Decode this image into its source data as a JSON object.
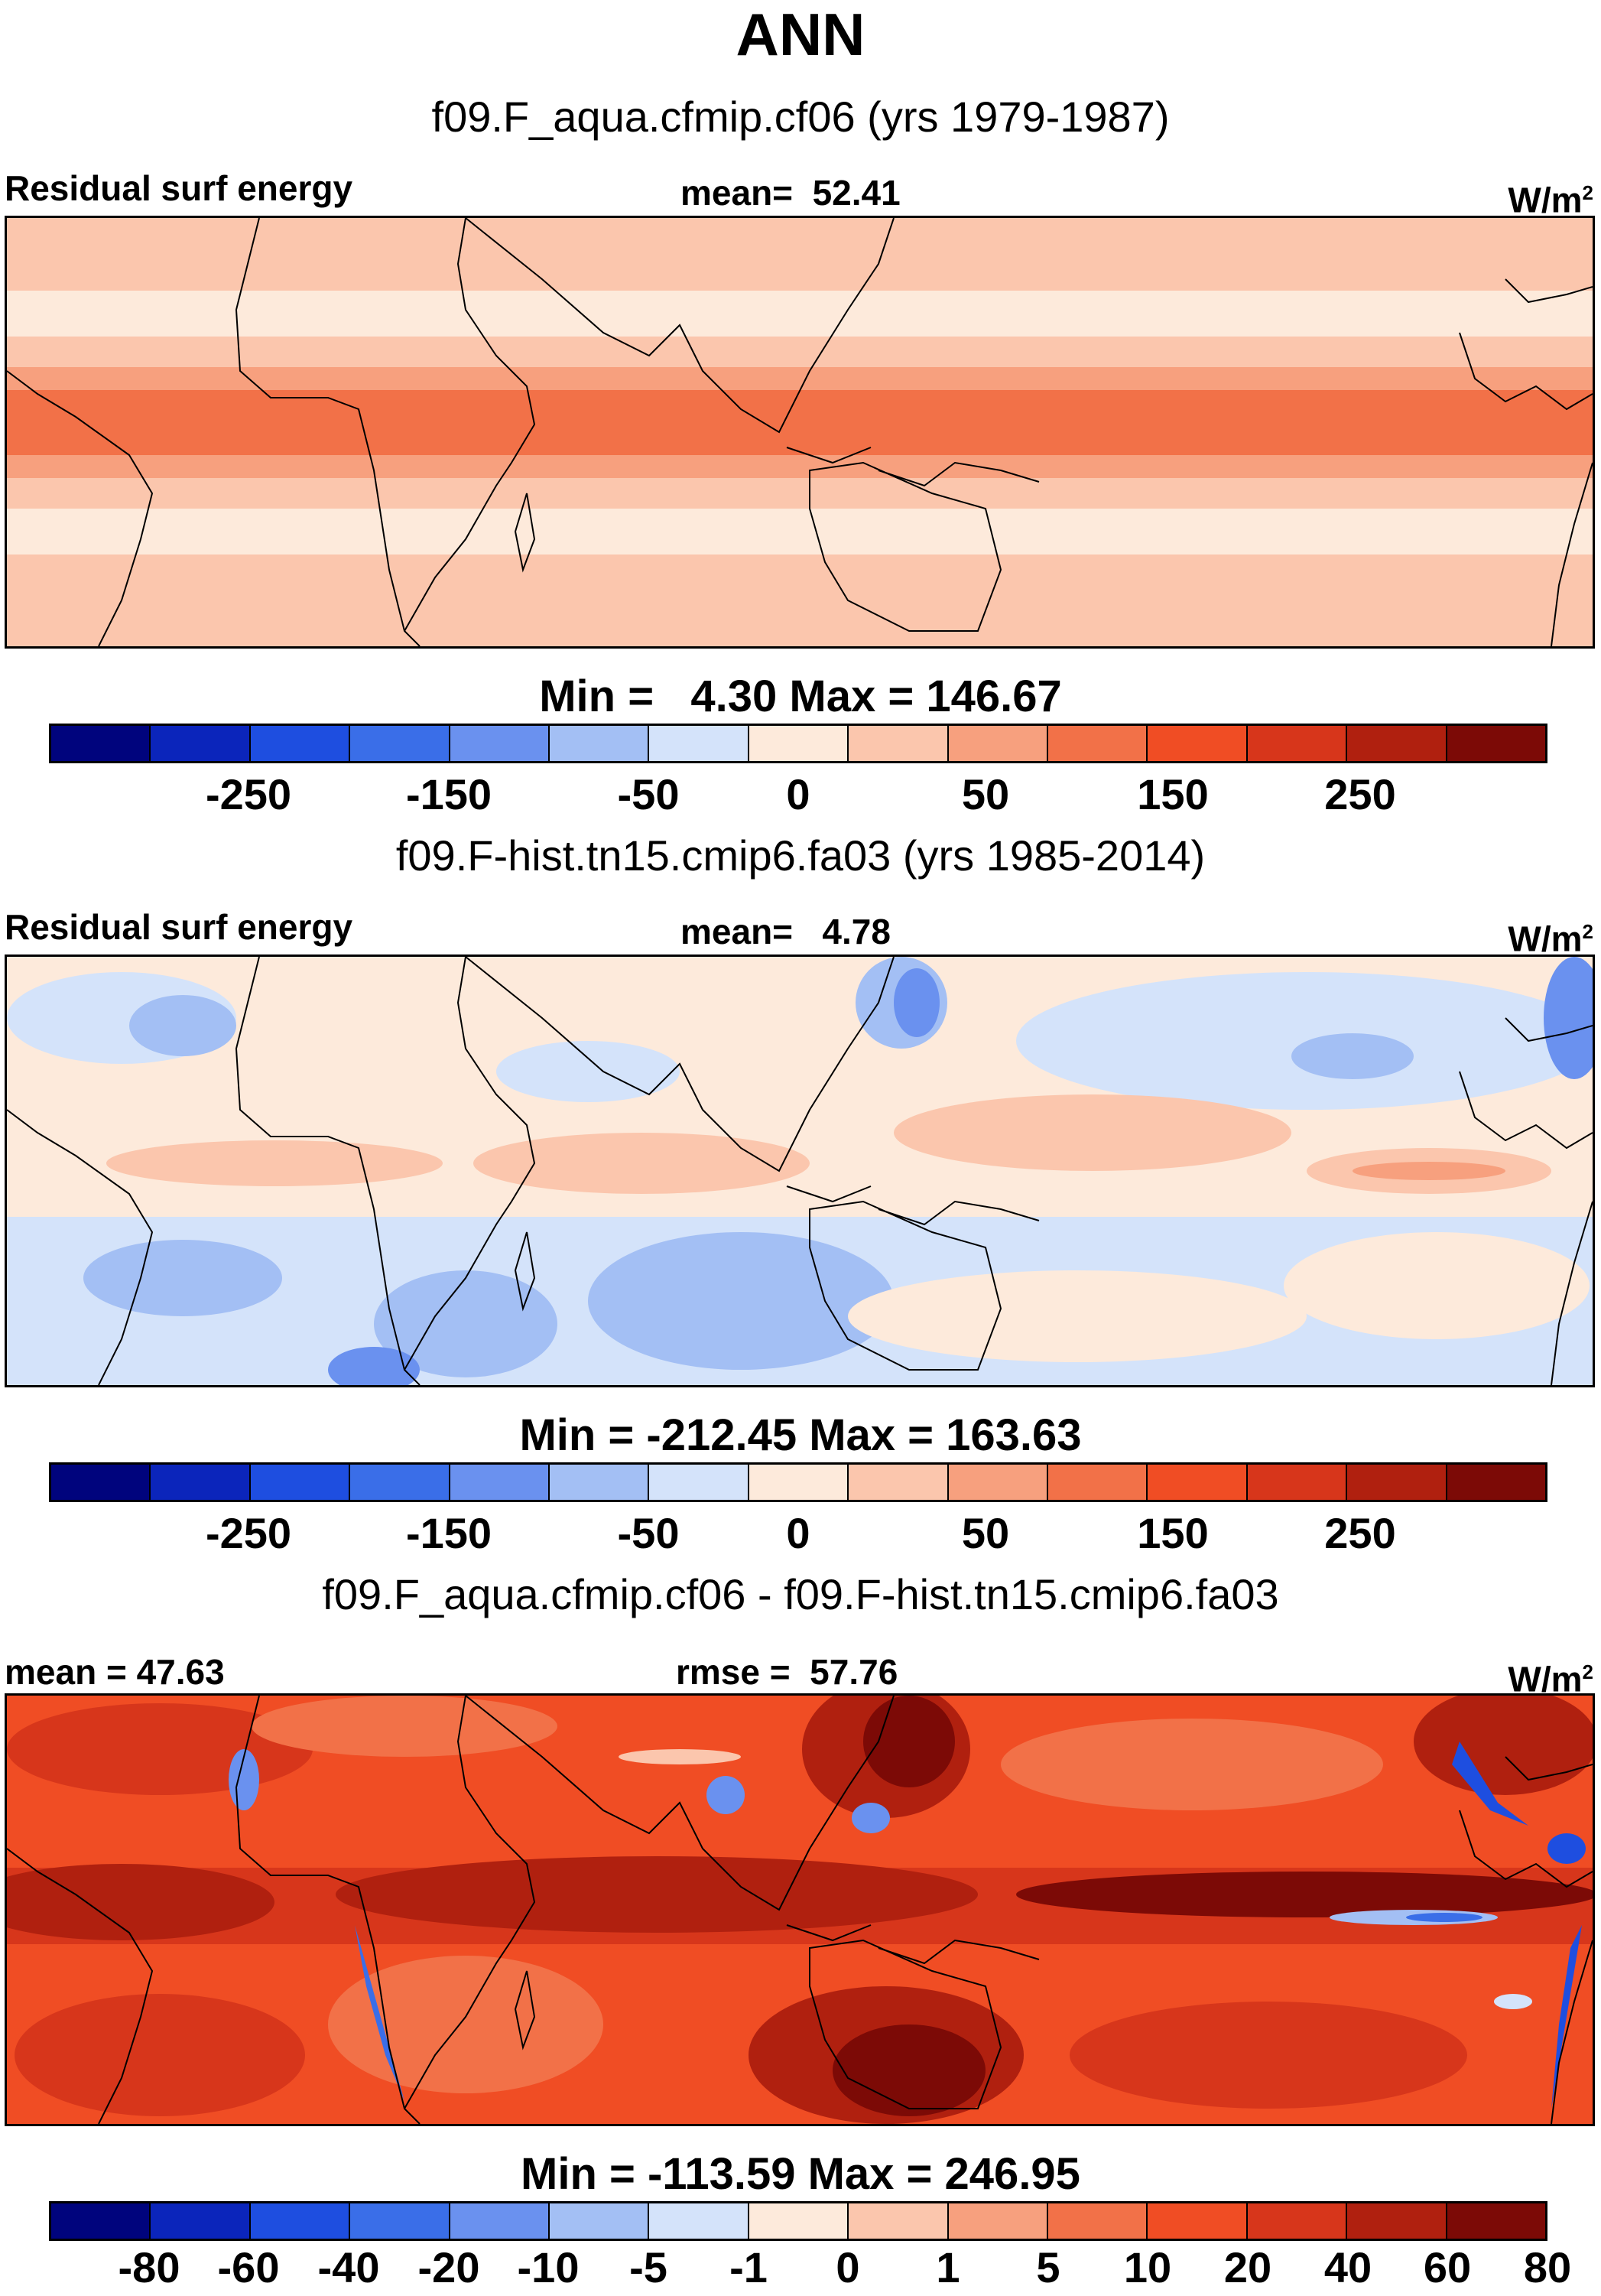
{
  "figure": {
    "title": "ANN"
  },
  "panels": [
    {
      "case_title": "f09.F_aqua.cfmip.cf06 (yrs 1979-1987)",
      "left_label": "Residual surf energy",
      "center_label": "mean=  52.41",
      "units": "W/m",
      "units_exp": "2",
      "minmax": "Min =   4.30 Max = 146.67",
      "colorbar_labels": [
        "-250",
        "-150",
        "-50",
        "0",
        "50",
        "150",
        "250"
      ]
    },
    {
      "case_title": "f09.F-hist.tn15.cmip6.fa03 (yrs 1985-2014)",
      "left_label": "Residual surf energy",
      "center_label": "mean=   4.78",
      "units": "W/m",
      "units_exp": "2",
      "minmax": "Min = -212.45 Max = 163.63",
      "colorbar_labels": [
        "-250",
        "-150",
        "-50",
        "0",
        "50",
        "150",
        "250"
      ]
    },
    {
      "case_title": "f09.F_aqua.cfmip.cf06 - f09.F-hist.tn15.cmip6.fa03",
      "left_label": "mean =  47.63",
      "center_label": "rmse =  57.76",
      "units": "W/m",
      "units_exp": "2",
      "minmax": "Min = -113.59 Max = 246.95",
      "colorbar_labels": [
        "-80",
        "-60",
        "-40",
        "-20",
        "-10",
        "-5",
        "-1",
        "0",
        "1",
        "5",
        "10",
        "20",
        "40",
        "60",
        "80"
      ]
    }
  ],
  "colorbar_colors": [
    "#00047d",
    "#0b25bb",
    "#1e4ee0",
    "#3a6ee8",
    "#6a91ef",
    "#a3bff4",
    "#d4e3fa",
    "#fdeadb",
    "#fbc6ad",
    "#f7a07e",
    "#f27148",
    "#f04d24",
    "#d7361b",
    "#b0200f",
    "#7c0a06"
  ]
}
